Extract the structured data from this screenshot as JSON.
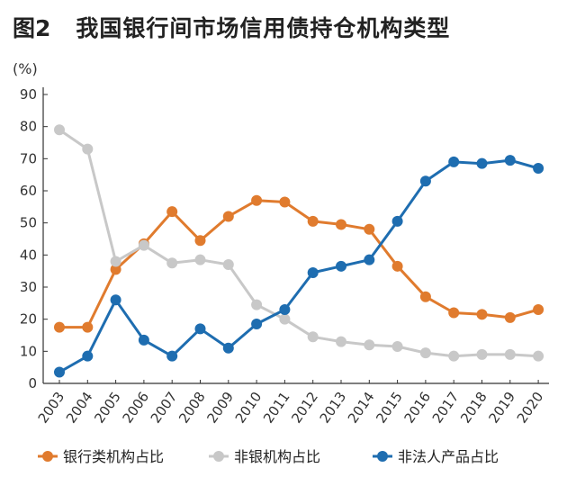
{
  "figure": {
    "number": "图2",
    "title": "我国银行间市场信用债持仓机构类型"
  },
  "colors": {
    "series_0": "#E07B2E",
    "series_1": "#C8C8C8",
    "series_2": "#1E6DB0",
    "axis": "#333333"
  },
  "chart_data": {
    "type": "line",
    "title": "我国银行间市场信用债持仓机构类型",
    "ylabel": "(%)",
    "xlabel": "",
    "ylim": [
      0,
      90
    ],
    "yticks": [
      0,
      10,
      20,
      30,
      40,
      50,
      60,
      70,
      80,
      90
    ],
    "grid": false,
    "legend_position": "bottom",
    "x": [
      "2003",
      "2004",
      "2005",
      "2006",
      "2007",
      "2008",
      "2009",
      "2010",
      "2011",
      "2012",
      "2013",
      "2014",
      "2015",
      "2016",
      "2017",
      "2018",
      "2019",
      "2020"
    ],
    "series": [
      {
        "name": "银行类机构占比",
        "values": [
          17.5,
          17.5,
          35.5,
          43.5,
          53.5,
          44.5,
          52,
          57,
          56.5,
          50.5,
          49.5,
          48,
          36.5,
          27,
          22,
          21.5,
          20.5,
          23
        ]
      },
      {
        "name": "非银机构占比",
        "values": [
          79,
          73,
          38,
          43,
          37.5,
          38.5,
          37,
          24.5,
          20,
          14.5,
          13,
          12,
          11.5,
          9.5,
          8.5,
          9,
          9,
          8.5
        ]
      },
      {
        "name": "非法人产品占比",
        "values": [
          3.5,
          8.5,
          26,
          13.5,
          8.5,
          17,
          11,
          18.5,
          23,
          34.5,
          36.5,
          38.5,
          50.5,
          63,
          69,
          68.5,
          69.5,
          67
        ]
      }
    ]
  }
}
